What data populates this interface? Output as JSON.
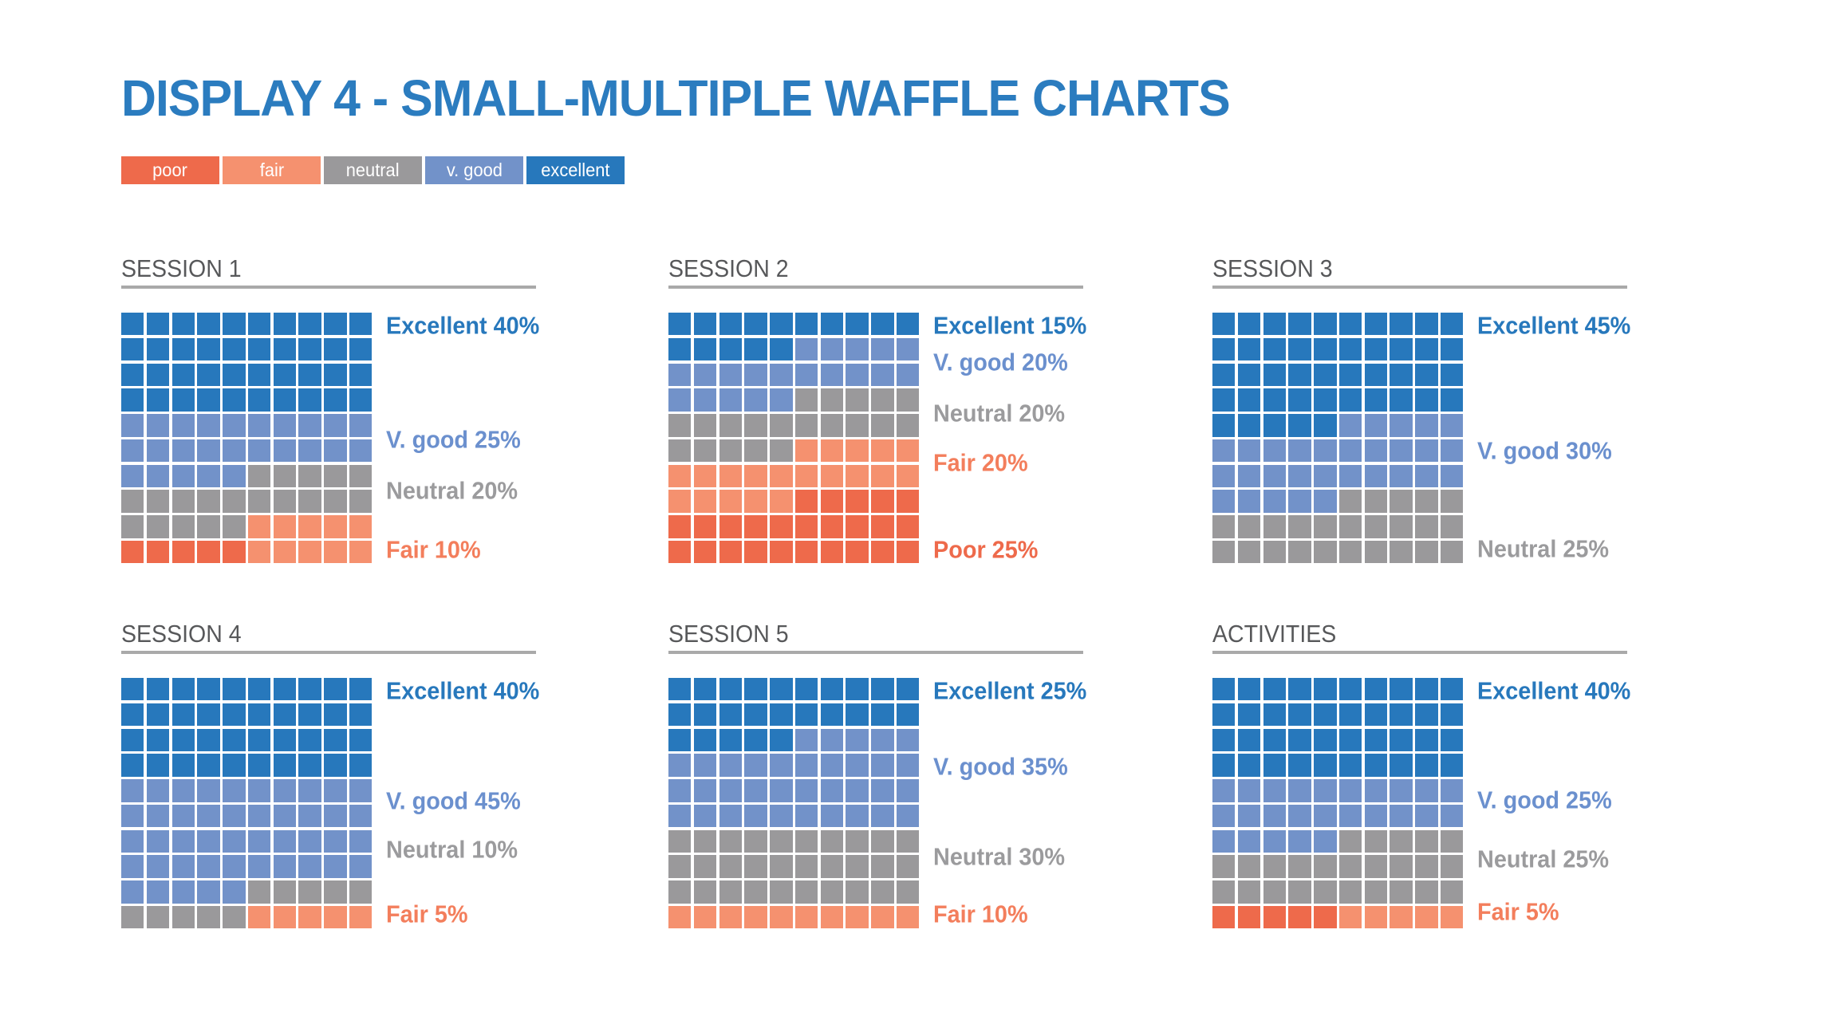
{
  "page": {
    "title": "DISPLAY 4 - SMALL-MULTIPLE WAFFLE CHARTS",
    "title_color": "#2B7CBF",
    "background": "#FFFFFF"
  },
  "palette": {
    "excellent": "#2778BC",
    "v_good": "#7292C9",
    "neutral": "#9A999B",
    "fair": "#F5916F",
    "poor": "#EE6A4B"
  },
  "label_colors": {
    "excellent": "#2778BC",
    "v_good": "#6B90CE",
    "neutral": "#9B9B9D",
    "fair": "#F37E5C",
    "poor": "#EE6A4B"
  },
  "legend": {
    "items": [
      {
        "label": "poor",
        "category": "poor"
      },
      {
        "label": "fair",
        "category": "fair"
      },
      {
        "label": "neutral",
        "category": "neutral"
      },
      {
        "label": "v. good",
        "category": "v_good"
      },
      {
        "label": "excellent",
        "category": "excellent"
      }
    ]
  },
  "chart_data": [
    {
      "title": "SESSION 1",
      "type": "waffle",
      "grid_size": 10,
      "unit_percent_per_cell": 1,
      "values": {
        "excellent": 40,
        "v_good": 25,
        "neutral": 20,
        "fair": 10,
        "poor": 5
      },
      "labels": [
        {
          "text": "Excellent 40%",
          "category": "excellent",
          "row": 1.0
        },
        {
          "text": "V. good 25%",
          "category": "v_good",
          "row": 5.5
        },
        {
          "text": "Neutral 20%",
          "category": "neutral",
          "row": 7.5
        },
        {
          "text": "Fair 10%",
          "category": "fair",
          "row": 9.85
        }
      ],
      "rows": [
        "eeeeeeeeee",
        "eeeeeeeeee",
        "eeeeeeeeee",
        "eeeeeeeeee",
        "vvvvvvvvvv",
        "vvvvvvvvvv",
        "vvvvvnnnnn",
        "nnnnnnnnnn",
        "nnnnnfffff",
        "pppppfffff"
      ]
    },
    {
      "title": "SESSION 2",
      "type": "waffle",
      "grid_size": 10,
      "unit_percent_per_cell": 1,
      "values": {
        "excellent": 15,
        "v_good": 20,
        "neutral": 20,
        "fair": 20,
        "poor": 25
      },
      "labels": [
        {
          "text": "Excellent 15%",
          "category": "excellent",
          "row": 1.0
        },
        {
          "text": "V. good 20%",
          "category": "v_good",
          "row": 2.45
        },
        {
          "text": "Neutral 20%",
          "category": "neutral",
          "row": 4.45
        },
        {
          "text": "Fair 20%",
          "category": "fair",
          "row": 6.4
        },
        {
          "text": "Poor 25%",
          "category": "poor",
          "row": 9.85
        }
      ],
      "rows": [
        "eeeeeeeeee",
        "eeeeevvvvv",
        "vvvvvvvvvv",
        "vvvvvnnnnn",
        "nnnnnnnnnn",
        "nnnnnfffff",
        "ffffffffff",
        "fffffppppp",
        "pppppppppp",
        "pppppppppp"
      ]
    },
    {
      "title": "SESSION 3",
      "type": "waffle",
      "grid_size": 10,
      "unit_percent_per_cell": 1,
      "values": {
        "excellent": 45,
        "v_good": 30,
        "neutral": 25
      },
      "labels": [
        {
          "text": "Excellent 45%",
          "category": "excellent",
          "row": 1.0
        },
        {
          "text": "V. good 30%",
          "category": "v_good",
          "row": 5.95
        },
        {
          "text": "Neutral 25%",
          "category": "neutral",
          "row": 9.8
        }
      ],
      "rows": [
        "eeeeeeeeee",
        "eeeeeeeeee",
        "eeeeeeeeee",
        "eeeeeeeeee",
        "eeeeevvvvv",
        "vvvvvvvvvv",
        "vvvvvvvvvv",
        "vvvvvnnnnn",
        "nnnnnnnnnn",
        "nnnnnnnnnn"
      ]
    },
    {
      "title": "SESSION 4",
      "type": "waffle",
      "grid_size": 10,
      "unit_percent_per_cell": 1,
      "values": {
        "excellent": 40,
        "v_good": 45,
        "neutral": 10,
        "fair": 5
      },
      "labels": [
        {
          "text": "Excellent 40%",
          "category": "excellent",
          "row": 1.0
        },
        {
          "text": "V. good 45%",
          "category": "v_good",
          "row": 5.35
        },
        {
          "text": "Neutral 10%",
          "category": "neutral",
          "row": 7.25
        },
        {
          "text": "Fair 5%",
          "category": "fair",
          "row": 9.8
        }
      ],
      "rows": [
        "eeeeeeeeee",
        "eeeeeeeeee",
        "eeeeeeeeee",
        "eeeeeeeeee",
        "vvvvvvvvvv",
        "vvvvvvvvvv",
        "vvvvvvvvvv",
        "vvvvvvvvvv",
        "vvvvvnnnnn",
        "nnnnnfffff"
      ]
    },
    {
      "title": "SESSION 5",
      "type": "waffle",
      "grid_size": 10,
      "unit_percent_per_cell": 1,
      "values": {
        "excellent": 25,
        "v_good": 35,
        "neutral": 30,
        "fair": 10
      },
      "labels": [
        {
          "text": "Excellent 25%",
          "category": "excellent",
          "row": 1.0
        },
        {
          "text": "V. good 35%",
          "category": "v_good",
          "row": 4.0
        },
        {
          "text": "Neutral 30%",
          "category": "neutral",
          "row": 7.55
        },
        {
          "text": "Fair 10%",
          "category": "fair",
          "row": 9.8
        }
      ],
      "rows": [
        "eeeeeeeeee",
        "eeeeeeeeee",
        "eeeeevvvvv",
        "vvvvvvvvvv",
        "vvvvvvvvvv",
        "vvvvvvvvvv",
        "nnnnnnnnnn",
        "nnnnnnnnnn",
        "nnnnnnnnnn",
        "ffffffffff"
      ]
    },
    {
      "title": "ACTIVITIES",
      "type": "waffle",
      "grid_size": 10,
      "unit_percent_per_cell": 1,
      "values": {
        "excellent": 40,
        "v_good": 25,
        "neutral": 25,
        "fair": 5,
        "poor": 5
      },
      "labels": [
        {
          "text": "Excellent 40%",
          "category": "excellent",
          "row": 1.0
        },
        {
          "text": "V. good 25%",
          "category": "v_good",
          "row": 5.3
        },
        {
          "text": "Neutral 25%",
          "category": "neutral",
          "row": 7.65
        },
        {
          "text": "Fair 5%",
          "category": "fair",
          "row": 9.7
        }
      ],
      "rows": [
        "eeeeeeeeee",
        "eeeeeeeeee",
        "eeeeeeeeee",
        "eeeeeeeeee",
        "vvvvvvvvvv",
        "vvvvvvvvvv",
        "vvvvvnnnnn",
        "nnnnnnnnnn",
        "nnnnnnnnnn",
        "pppppfffff"
      ]
    }
  ]
}
